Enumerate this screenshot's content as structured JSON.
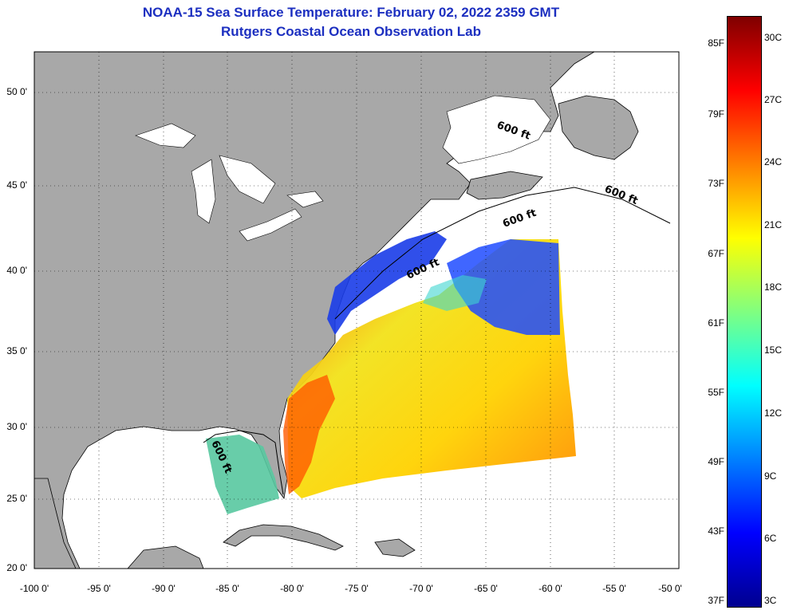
{
  "title": {
    "line1": "NOAA-15 Sea Surface Temperature:  February 02, 2022 2359 GMT",
    "line2": "Rutgers Coastal Ocean Observation Lab"
  },
  "axes": {
    "lat_labels": [
      "50 0'",
      "45 0'",
      "40 0'",
      "35 0'",
      "30 0'",
      "25 0'",
      "20 0'"
    ],
    "lon_labels": [
      "-100 0'",
      "-95 0'",
      "-90 0'",
      "-85 0'",
      "-80 0'",
      "-75 0'",
      "-70 0'",
      "-65 0'",
      "-60 0'",
      "-55 0'",
      "-50 0'"
    ]
  },
  "contours": {
    "label": "600 ft"
  },
  "colorbar": {
    "fahrenheit": [
      "85F",
      "79F",
      "73F",
      "67F",
      "61F",
      "55F",
      "49F",
      "43F",
      "37F"
    ],
    "celsius": [
      "30C",
      "27C",
      "24C",
      "21C",
      "18C",
      "15C",
      "12C",
      "9C",
      "6C",
      "3C"
    ],
    "colors": [
      "#7f0000",
      "#ff0000",
      "#ff8000",
      "#ffff00",
      "#80ff80",
      "#00ffff",
      "#0080ff",
      "#0000ff",
      "#00008f"
    ]
  },
  "map_colors": {
    "land": "#a8a8a8",
    "ocean": "#ffffff",
    "coast": "#000000"
  }
}
